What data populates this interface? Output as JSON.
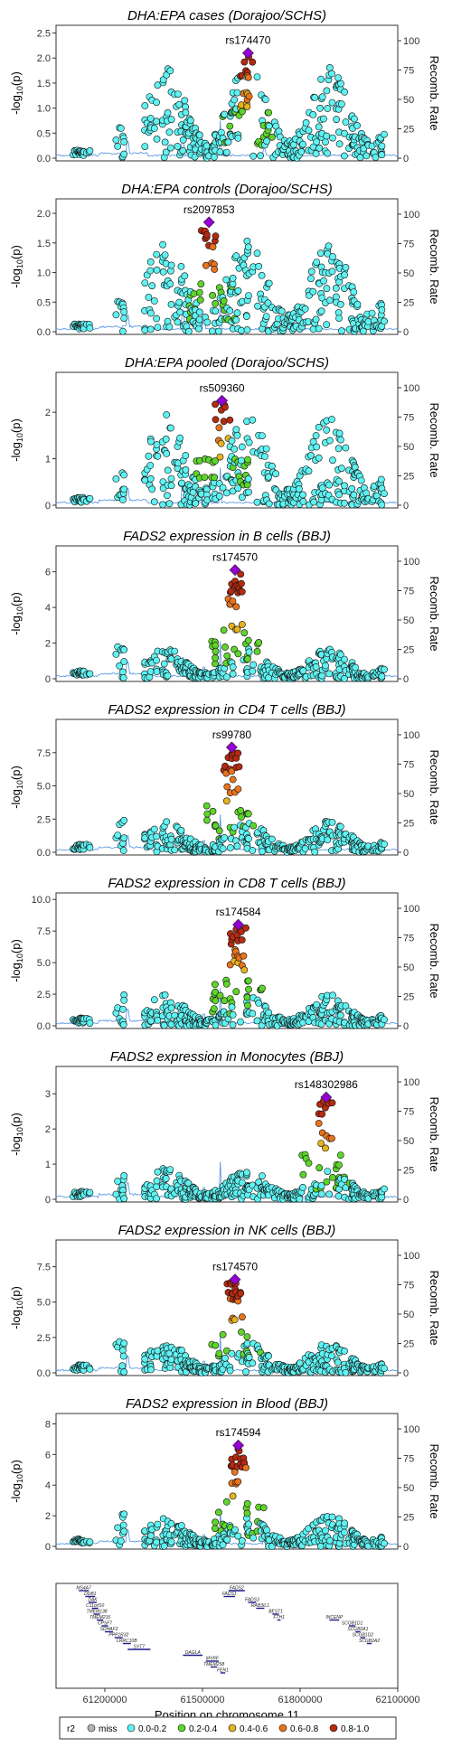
{
  "chart_data": {
    "type": "scatter",
    "x_range": [
      61050000,
      62100000
    ],
    "panels": [
      {
        "title": "DHA:EPA cases (Dorajoo/SCHS)",
        "lead_snp": "rs174470",
        "lead_x": 61640000,
        "lead_y": 2.1,
        "ylim": [
          0,
          2.6
        ],
        "yticks": [
          "0.0",
          "0.5",
          "1.0",
          "1.5",
          "2.0",
          "2.5"
        ],
        "ytick_vals": [
          0,
          0.5,
          1.0,
          1.5,
          2.0,
          2.5
        ]
      },
      {
        "title": "DHA:EPA controls (Dorajoo/SCHS)",
        "lead_snp": "rs2097853",
        "lead_x": 61520000,
        "lead_y": 1.85,
        "ylim": [
          0,
          2.2
        ],
        "yticks": [
          "0.0",
          "0.5",
          "1.0",
          "1.5",
          "2.0"
        ],
        "ytick_vals": [
          0,
          0.5,
          1.0,
          1.5,
          2.0
        ]
      },
      {
        "title": "DHA:EPA pooled (Dorajoo/SCHS)",
        "lead_snp": "rs509360",
        "lead_x": 61560000,
        "lead_y": 2.25,
        "ylim": [
          0,
          2.8
        ],
        "yticks": [
          "0",
          "1",
          "2"
        ],
        "ytick_vals": [
          0,
          1,
          2
        ]
      },
      {
        "title": "FADS2 expression in B cells (BBJ)",
        "lead_snp": "rs174570",
        "lead_x": 61600000,
        "lead_y": 6.1,
        "ylim": [
          0,
          7.3
        ],
        "yticks": [
          "0",
          "2",
          "4",
          "6"
        ],
        "ytick_vals": [
          0,
          2,
          4,
          6
        ]
      },
      {
        "title": "FADS2 expression in CD4 T cells (BBJ)",
        "lead_snp": "rs99780",
        "lead_x": 61590000,
        "lead_y": 7.9,
        "ylim": [
          0,
          9.8
        ],
        "yticks": [
          "0.0",
          "2.5",
          "5.0",
          "7.5"
        ],
        "ytick_vals": [
          0,
          2.5,
          5.0,
          7.5
        ]
      },
      {
        "title": "FADS2 expression in CD8 T cells (BBJ)",
        "lead_snp": "rs174584",
        "lead_x": 61610000,
        "lead_y": 8.0,
        "ylim": [
          0,
          10.3
        ],
        "yticks": [
          "0.0",
          "2.5",
          "5.0",
          "7.5",
          "10.0"
        ],
        "ytick_vals": [
          0,
          2.5,
          5.0,
          7.5,
          10.0
        ]
      },
      {
        "title": "FADS2 expression in Monocytes (BBJ)",
        "lead_snp": "rs148302986",
        "lead_x": 61880000,
        "lead_y": 2.9,
        "ylim": [
          0,
          3.7
        ],
        "yticks": [
          "0",
          "1",
          "2",
          "3"
        ],
        "ytick_vals": [
          0,
          1,
          2,
          3
        ]
      },
      {
        "title": "FADS2 expression in NK cells (BBJ)",
        "lead_snp": "rs174570",
        "lead_x": 61600000,
        "lead_y": 6.6,
        "ylim": [
          0,
          9.2
        ],
        "yticks": [
          "0.0",
          "2.5",
          "5.0",
          "7.5"
        ],
        "ytick_vals": [
          0,
          2.5,
          5.0,
          7.5
        ]
      },
      {
        "title": "FADS2 expression in Blood (BBJ)",
        "lead_snp": "rs174594",
        "lead_x": 61610000,
        "lead_y": 6.6,
        "ylim": [
          0,
          8.5
        ],
        "yticks": [
          "0",
          "2",
          "4",
          "6",
          "8"
        ],
        "ytick_vals": [
          0,
          2,
          4,
          6,
          8
        ]
      }
    ],
    "y_label_base": "-log",
    "y_label_sub": "10",
    "y_label_tail": "(p)",
    "y2_label": "Recomb. Rate",
    "y2_ticks": [
      "0",
      "25",
      "50",
      "75",
      "100"
    ],
    "y2_tick_vals": [
      0,
      25,
      50,
      75,
      100
    ],
    "x_ticks": [
      "61200000",
      "61500000",
      "61800000",
      "62100000"
    ],
    "x_tick_vals": [
      61200000,
      61500000,
      61800000,
      62100000
    ],
    "x_label": "Position on chromosome 11",
    "genes": [
      {
        "name": "MS4A7",
        "start": 61120000,
        "end": 61150000,
        "row": 0
      },
      {
        "name": "DDB1",
        "start": 61140000,
        "end": 61170000,
        "row": 1
      },
      {
        "name": "DAK",
        "start": 61150000,
        "end": 61175000,
        "row": 2
      },
      {
        "name": "C11orf10",
        "start": 61160000,
        "end": 61180000,
        "row": 3
      },
      {
        "name": "TMEM138",
        "start": 61165000,
        "end": 61185000,
        "row": 4
      },
      {
        "name": "TMEM216",
        "start": 61175000,
        "end": 61195000,
        "row": 5
      },
      {
        "name": "CPSF7",
        "start": 61190000,
        "end": 61210000,
        "row": 6
      },
      {
        "name": "SDHAF2",
        "start": 61200000,
        "end": 61225000,
        "row": 7
      },
      {
        "name": "PPP1R32",
        "start": 61230000,
        "end": 61255000,
        "row": 8
      },
      {
        "name": "LRRC10B",
        "start": 61255000,
        "end": 61280000,
        "row": 9
      },
      {
        "name": "SYT7",
        "start": 61270000,
        "end": 61340000,
        "row": 10
      },
      {
        "name": "DAGLA",
        "start": 61440000,
        "end": 61500000,
        "row": 11
      },
      {
        "name": "MYRF",
        "start": 61510000,
        "end": 61550000,
        "row": 12
      },
      {
        "name": "TMEM258",
        "start": 61525000,
        "end": 61545000,
        "row": 13
      },
      {
        "name": "FEN1",
        "start": 61555000,
        "end": 61570000,
        "row": 14
      },
      {
        "name": "FADS2",
        "start": 61580000,
        "end": 61630000,
        "row": 0
      },
      {
        "name": "FADS1",
        "start": 61565000,
        "end": 61600000,
        "row": 1
      },
      {
        "name": "FADS3",
        "start": 61640000,
        "end": 61665000,
        "row": 2
      },
      {
        "name": "RAB3IL1",
        "start": 61665000,
        "end": 61690000,
        "row": 3
      },
      {
        "name": "BEST1",
        "start": 61715000,
        "end": 61735000,
        "row": 4
      },
      {
        "name": "FTH1",
        "start": 61730000,
        "end": 61740000,
        "row": 5
      },
      {
        "name": "INCENP",
        "start": 61890000,
        "end": 61920000,
        "row": 5
      },
      {
        "name": "SCGB1D1",
        "start": 61950000,
        "end": 61970000,
        "row": 6
      },
      {
        "name": "SCGB2A1",
        "start": 61970000,
        "end": 61985000,
        "row": 7
      },
      {
        "name": "SCGB1D2",
        "start": 61985000,
        "end": 62000000,
        "row": 8
      },
      {
        "name": "SCGB2A2",
        "start": 62005000,
        "end": 62020000,
        "row": 9
      }
    ],
    "legend": {
      "title": "r2",
      "items": [
        {
          "label": "miss",
          "color": "#b4b4b4"
        },
        {
          "label": "0.0-0.2",
          "color": "#5ff2f2"
        },
        {
          "label": "0.2-0.4",
          "color": "#5ed42c"
        },
        {
          "label": "0.4-0.6",
          "color": "#e6b31e"
        },
        {
          "label": "0.6-0.8",
          "color": "#e8731c"
        },
        {
          "label": "0.8-1.0",
          "color": "#b52a11"
        }
      ]
    },
    "lead_color": "#9400d3",
    "recomb_color": "#4a90e2"
  }
}
